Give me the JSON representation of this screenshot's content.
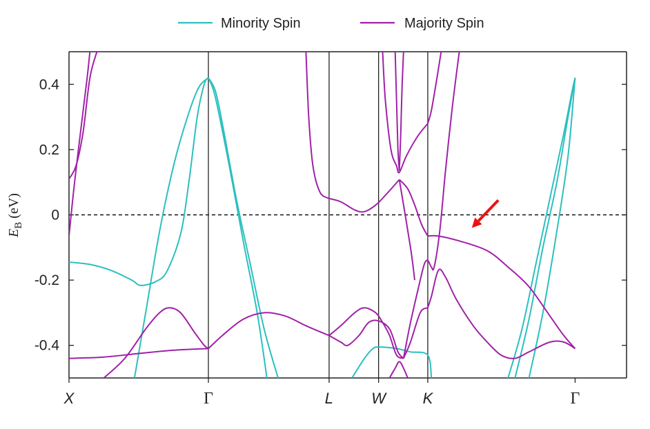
{
  "chart_data": {
    "type": "line",
    "title": "",
    "ylabel_main": "E",
    "ylabel_sub": "B",
    "ylabel_unit": "(eV)",
    "ylim": [
      -0.5,
      0.5
    ],
    "yticks": [
      {
        "value": 0.4,
        "label": "0.4"
      },
      {
        "value": 0.2,
        "label": "0.2"
      },
      {
        "value": 0.0,
        "label": "0"
      },
      {
        "value": -0.2,
        "label": "-0.2"
      },
      {
        "value": -0.4,
        "label": "-0.4"
      }
    ],
    "xlim": [
      0,
      4.0
    ],
    "kpoints": [
      {
        "label": "X",
        "x": 0.0,
        "style": "italic"
      },
      {
        "label": "Γ",
        "x": 1.0,
        "style": "serif"
      },
      {
        "label": "L",
        "x": 1.866,
        "style": "italic"
      },
      {
        "label": "W",
        "x": 2.221,
        "style": "italic"
      },
      {
        "label": "K",
        "x": 2.574,
        "style": "italic"
      },
      {
        "label": "Γ",
        "x": 3.631,
        "style": "serif"
      }
    ],
    "fermi_level": 0.0,
    "legend": {
      "placement": "top-center",
      "entries": [
        {
          "name": "Minority Spin",
          "color": "#2bbfbf"
        },
        {
          "name": "Majority Spin",
          "color": "#a020a8"
        }
      ]
    },
    "annotation": {
      "type": "arrow",
      "color": "#ee1111",
      "tail": [
        3.08,
        0.045
      ],
      "head": [
        2.89,
        -0.04
      ]
    },
    "series": [
      {
        "name": "Minority Spin",
        "color": "#2bbfbf",
        "bands": [
          [
            [
              0,
              -0.145
            ],
            [
              0.15,
              -0.152
            ],
            [
              0.3,
              -0.17
            ],
            [
              0.45,
              -0.2
            ],
            [
              0.5,
              -0.215
            ],
            [
              0.55,
              -0.215
            ],
            [
              0.62,
              -0.205
            ],
            [
              0.7,
              -0.175
            ],
            [
              0.8,
              -0.06
            ],
            [
              0.86,
              0.1
            ],
            [
              0.92,
              0.3
            ],
            [
              0.97,
              0.4
            ],
            [
              1.0,
              0.42
            ]
          ],
          [
            [
              0.47,
              -0.5
            ],
            [
              0.55,
              -0.3
            ],
            [
              0.65,
              -0.05
            ],
            [
              0.75,
              0.15
            ],
            [
              0.85,
              0.3
            ],
            [
              0.93,
              0.39
            ],
            [
              1.0,
              0.42
            ]
          ],
          [
            [
              1.0,
              0.42
            ],
            [
              1.05,
              0.36
            ],
            [
              1.15,
              0.15
            ],
            [
              1.25,
              -0.08
            ],
            [
              1.35,
              -0.3
            ],
            [
              1.42,
              -0.5
            ]
          ],
          [
            [
              1.0,
              0.42
            ],
            [
              1.05,
              0.38
            ],
            [
              1.1,
              0.28
            ],
            [
              1.2,
              0.05
            ],
            [
              1.3,
              -0.15
            ],
            [
              1.4,
              -0.35
            ],
            [
              1.5,
              -0.5
            ]
          ],
          [
            [
              2.03,
              -0.5
            ],
            [
              2.12,
              -0.44
            ],
            [
              2.18,
              -0.41
            ],
            [
              2.23,
              -0.405
            ],
            [
              2.35,
              -0.41
            ],
            [
              2.45,
              -0.42
            ],
            [
              2.574,
              -0.43
            ],
            [
              2.6,
              -0.5
            ]
          ],
          [
            [
              3.15,
              -0.5
            ],
            [
              3.25,
              -0.35
            ],
            [
              3.35,
              -0.15
            ],
            [
              3.45,
              0.05
            ],
            [
              3.55,
              0.25
            ],
            [
              3.61,
              0.38
            ],
            [
              3.631,
              0.42
            ]
          ],
          [
            [
              3.2,
              -0.5
            ],
            [
              3.3,
              -0.32
            ],
            [
              3.4,
              -0.1
            ],
            [
              3.5,
              0.1
            ],
            [
              3.58,
              0.3
            ],
            [
              3.631,
              0.42
            ]
          ],
          [
            [
              3.3,
              -0.5
            ],
            [
              3.4,
              -0.3
            ],
            [
              3.5,
              -0.05
            ],
            [
              3.58,
              0.18
            ],
            [
              3.631,
              0.42
            ]
          ]
        ]
      },
      {
        "name": "Majority Spin",
        "color": "#a020a8",
        "bands": [
          [
            [
              0,
              -0.065
            ],
            [
              0.04,
              0.1
            ],
            [
              0.09,
              0.28
            ],
            [
              0.13,
              0.42
            ],
            [
              0.15,
              0.5
            ]
          ],
          [
            [
              0,
              0.11
            ],
            [
              0.05,
              0.15
            ],
            [
              0.1,
              0.25
            ],
            [
              0.15,
              0.42
            ],
            [
              0.2,
              0.5
            ]
          ],
          [
            [
              0,
              -0.44
            ],
            [
              0.25,
              -0.436
            ],
            [
              0.5,
              -0.425
            ],
            [
              0.75,
              -0.415
            ],
            [
              1.0,
              -0.41
            ]
          ],
          [
            [
              0.25,
              -0.5
            ],
            [
              0.4,
              -0.44
            ],
            [
              0.55,
              -0.35
            ],
            [
              0.65,
              -0.3
            ],
            [
              0.72,
              -0.285
            ],
            [
              0.8,
              -0.3
            ],
            [
              0.9,
              -0.36
            ],
            [
              0.97,
              -0.4
            ],
            [
              1.0,
              -0.41
            ]
          ],
          [
            [
              1.0,
              -0.41
            ],
            [
              1.1,
              -0.37
            ],
            [
              1.25,
              -0.32
            ],
            [
              1.4,
              -0.3
            ],
            [
              1.55,
              -0.31
            ],
            [
              1.7,
              -0.34
            ],
            [
              1.866,
              -0.37
            ]
          ],
          [
            [
              1.866,
              -0.37
            ],
            [
              1.95,
              -0.34
            ],
            [
              2.05,
              -0.3
            ],
            [
              2.12,
              -0.285
            ],
            [
              2.2,
              -0.3
            ],
            [
              2.25,
              -0.33
            ],
            [
              2.3,
              -0.37
            ],
            [
              2.35,
              -0.43
            ],
            [
              2.4,
              -0.44
            ]
          ],
          [
            [
              1.866,
              -0.37
            ],
            [
              1.95,
              -0.39
            ],
            [
              2.0,
              -0.4
            ],
            [
              2.08,
              -0.37
            ],
            [
              2.15,
              -0.33
            ],
            [
              2.22,
              -0.325
            ],
            [
              2.3,
              -0.35
            ],
            [
              2.36,
              -0.42
            ],
            [
              2.4,
              -0.44
            ]
          ],
          [
            [
              2.4,
              -0.44
            ],
            [
              2.45,
              -0.39
            ],
            [
              2.52,
              -0.3
            ],
            [
              2.574,
              -0.285
            ]
          ],
          [
            [
              2.4,
              -0.44
            ],
            [
              2.45,
              -0.33
            ],
            [
              2.52,
              -0.2
            ],
            [
              2.55,
              -0.15
            ],
            [
              2.574,
              -0.14
            ],
            [
              2.6,
              -0.16
            ],
            [
              2.62,
              -0.16
            ],
            [
              2.66,
              -0.05
            ],
            [
              2.7,
              0.13
            ],
            [
              2.75,
              0.33
            ],
            [
              2.8,
              0.5
            ]
          ],
          [
            [
              2.574,
              -0.285
            ],
            [
              2.6,
              -0.25
            ],
            [
              2.65,
              -0.17
            ],
            [
              2.7,
              -0.19
            ],
            [
              2.78,
              -0.26
            ],
            [
              2.9,
              -0.34
            ],
            [
              3.0,
              -0.39
            ],
            [
              3.1,
              -0.43
            ],
            [
              3.2,
              -0.44
            ],
            [
              3.3,
              -0.42
            ],
            [
              3.45,
              -0.39
            ],
            [
              3.55,
              -0.39
            ],
            [
              3.631,
              -0.41
            ]
          ],
          [
            [
              2.574,
              -0.065
            ],
            [
              2.65,
              -0.065
            ],
            [
              2.8,
              -0.08
            ],
            [
              3.0,
              -0.11
            ],
            [
              3.15,
              -0.16
            ],
            [
              3.3,
              -0.22
            ],
            [
              3.45,
              -0.31
            ],
            [
              3.55,
              -0.37
            ],
            [
              3.631,
              -0.41
            ]
          ],
          [
            [
              1.7,
              0.5
            ],
            [
              1.72,
              0.3
            ],
            [
              1.75,
              0.15
            ],
            [
              1.8,
              0.07
            ],
            [
              1.866,
              0.05
            ]
          ],
          [
            [
              1.866,
              0.05
            ],
            [
              1.95,
              0.04
            ],
            [
              2.05,
              0.015
            ],
            [
              2.12,
              0.01
            ],
            [
              2.2,
              0.03
            ],
            [
              2.27,
              0.06
            ],
            [
              2.37,
              0.108
            ]
          ],
          [
            [
              2.37,
              0.108
            ],
            [
              2.43,
              0.08
            ],
            [
              2.48,
              0.03
            ],
            [
              2.53,
              -0.03
            ],
            [
              2.574,
              -0.065
            ]
          ],
          [
            [
              2.37,
              0.108
            ],
            [
              2.45,
              -0.1
            ],
            [
              2.48,
              -0.2
            ]
          ],
          [
            [
              2.34,
              0.5
            ],
            [
              2.35,
              0.35
            ],
            [
              2.36,
              0.2
            ],
            [
              2.37,
              0.135
            ]
          ],
          [
            [
              2.37,
              0.135
            ],
            [
              2.38,
              0.25
            ],
            [
              2.39,
              0.4
            ],
            [
              2.4,
              0.5
            ]
          ],
          [
            [
              2.25,
              0.5
            ],
            [
              2.27,
              0.35
            ],
            [
              2.31,
              0.2
            ],
            [
              2.35,
              0.15
            ],
            [
              2.37,
              0.13
            ],
            [
              2.42,
              0.18
            ],
            [
              2.5,
              0.24
            ],
            [
              2.574,
              0.28
            ]
          ],
          [
            [
              2.574,
              0.28
            ],
            [
              2.6,
              0.32
            ],
            [
              2.64,
              0.42
            ],
            [
              2.67,
              0.5
            ]
          ],
          [
            [
              2.3,
              -0.5
            ],
            [
              2.34,
              -0.47
            ],
            [
              2.37,
              -0.45
            ],
            [
              2.4,
              -0.47
            ],
            [
              2.43,
              -0.5
            ]
          ]
        ]
      }
    ]
  }
}
